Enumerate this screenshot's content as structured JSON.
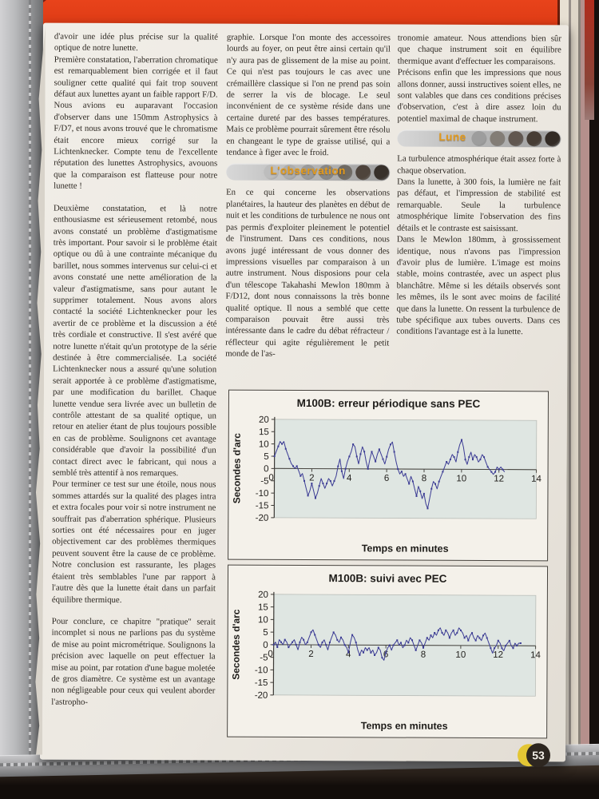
{
  "page_number": "53",
  "accent": {
    "banner_label_color": "#e39a1c",
    "cover_red": "#dd3a14",
    "chart_line_color": "#3b3b94",
    "chart_plot_bg": "#dfe6e2",
    "badge_yellow": "#e3c634",
    "badge_dark": "#2d2620"
  },
  "banners": {
    "observation": {
      "label": "L'observation",
      "circle_colors": [
        "#bdbdbd",
        "#adadad",
        "#9a9a9a",
        "#878787",
        "#6f6a63",
        "#4e443c",
        "#37302a"
      ]
    },
    "lune": {
      "label": "Lune",
      "circle_colors": [
        "#9d9d9d",
        "#837d76",
        "#615750",
        "#473d35",
        "#332b25"
      ]
    }
  },
  "columns": [
    {
      "blocks": [
        {
          "type": "p",
          "text": "d'avoir une idée plus précise sur la qualité optique de notre lunette."
        },
        {
          "type": "p",
          "text": "Première constatation, l'aberration chromatique est remarquablement bien corrigée et il faut souligner cette qualité qui fait trop souvent défaut aux lunettes ayant un faible rapport F/D. Nous avions eu auparavant l'occasion d'observer dans une 150mm Astrophysics à F/D7, et nous avons trouvé que le chromatisme était encore mieux corrigé sur la Lichtenknecker. Compte tenu de l'excellente réputation des lunettes Astrophysics, avouons que la comparaison est flatteuse pour notre lunette !"
        },
        {
          "type": "gap"
        },
        {
          "type": "p",
          "text": "Deuxième constatation, et là notre enthousiasme est sérieusement retombé, nous avons constaté un problème d'astigmatisme très important. Pour savoir si le problème était optique ou dû à une contrainte mécanique du barillet, nous sommes intervenus sur celui-ci et avons constaté une nette amélioration de la valeur d'astigmatisme, sans pour autant le supprimer totalement. Nous avons alors contacté la société Lichtenknecker pour les avertir de ce problème et la discussion a été très cordiale et constructive. Il s'est avéré que notre lunette n'était qu'un prototype de la série destinée à être commercialisée. La société Lichtenknecker nous a assuré qu'une solution serait apportée à ce problème d'astigmatisme, par une modification du barillet. Chaque lunette vendue sera livrée avec un bulletin de contrôle attestant de sa qualité optique, un retour en atelier étant de plus toujours possible en cas de problème. Soulignons cet avantage considérable que d'avoir la possibilité d'un contact direct avec le fabricant, qui nous a semblé très attentif à nos remarques."
        },
        {
          "type": "p",
          "text": "Pour terminer ce test sur une étoile, nous nous sommes attardés sur la qualité des plages intra et extra focales pour voir si notre instrument ne souffrait pas d'aberration sphérique. Plusieurs sorties ont été nécessaires pour en juger objectivement car des problèmes thermiques peuvent souvent être la cause de ce problème. Notre conclusion est rassurante, les plages étaient très semblables l'une par rapport à l'autre dès que la lunette était dans un parfait équilibre thermique."
        },
        {
          "type": "gap"
        },
        {
          "type": "p",
          "text": "Pour conclure, ce chapitre \"pratique\" serait incomplet si nous ne parlions pas du système de mise au point micrométrique. Soulignons la précision avec laquelle on peut effectuer la mise au point, par rotation d'une bague moletée de gros diamètre. Ce système est un avantage non négligeable pour ceux qui veulent aborder l'astropho-"
        }
      ]
    },
    {
      "blocks": [
        {
          "type": "p",
          "text": "graphie. Lorsque l'on monte des accessoires lourds au foyer, on peut être ainsi certain qu'il n'y aura pas de glissement de la mise au point. Ce qui n'est pas toujours le cas avec une crémaillère classique si l'on ne prend pas soin de serrer la vis de blocage. Le seul inconvénient de ce système réside dans une certaine dureté par des basses températures. Mais ce problème pourrait sûrement être résolu en changeant le type de graisse utilisé, qui a tendance à figer avec le froid."
        },
        {
          "type": "banner",
          "key": "observation"
        },
        {
          "type": "p",
          "text": "En ce qui concerne les observations planétaires, la hauteur des planètes en début de nuit et les conditions de turbulence ne nous ont pas permis d'exploiter pleinement le potentiel de l'instrument. Dans ces conditions, nous avons jugé intéressant de vous donner des impressions visuelles par comparaison à un autre instrument. Nous disposions pour cela d'un télescope Takahashi Mewlon 180mm à F/D12, dont nous connaissons la très bonne qualité optique. Il nous a semblé que cette comparaison pouvait être aussi très intéressante dans le cadre du débat réfracteur / réflecteur qui agite régulièrement le petit monde de l'as-"
        }
      ]
    },
    {
      "blocks": [
        {
          "type": "p",
          "text": "tronomie amateur. Nous attendions bien sûr que chaque instrument soit en équilibre thermique avant d'effectuer les comparaisons."
        },
        {
          "type": "p",
          "text": "Précisons enfin que les impressions que nous allons donner, aussi instructives soient elles, ne sont valables que dans ces conditions précises d'observation, c'est à dire assez loin du potentiel maximal de chaque instrument."
        },
        {
          "type": "banner",
          "key": "lune"
        },
        {
          "type": "p",
          "text": "La turbulence atmosphérique était assez forte à chaque observation."
        },
        {
          "type": "p",
          "text": "Dans la lunette, à 300 fois, la lumière ne fait pas défaut, et l'impression de stabilité est remarquable. Seule la turbulence atmosphérique limite l'observation des fins détails et le contraste est saisissant."
        },
        {
          "type": "p",
          "text": "Dans le Mewlon 180mm, à grossissement identique, nous n'avons pas l'impression d'avoir plus de lumière. L'image est moins stable, moins contrastée, avec un aspect plus blanchâtre. Même si les détails observés sont les mêmes, ils le sont avec moins de facilité que dans la lunette. On ressent la turbulence de tube spécifique aux tubes ouverts. Dans ces conditions l'avantage est à la lunette."
        }
      ]
    }
  ],
  "chart_data": [
    {
      "type": "line",
      "title": "M100B: erreur périodique sans PEC",
      "xlabel": "Temps en minutes",
      "ylabel": "Secondes d'arc",
      "xlim": [
        0,
        14
      ],
      "ylim": [
        -20,
        20
      ],
      "xticks": [
        0,
        2,
        4,
        6,
        8,
        10,
        12,
        14
      ],
      "yticks": [
        20,
        15,
        10,
        5,
        0,
        -5,
        -10,
        -15,
        -20
      ],
      "grid": false,
      "legend": "none",
      "x_start": 0,
      "x_step": 0.1,
      "values": [
        5,
        7,
        9,
        11,
        10,
        11,
        8,
        6,
        4,
        2,
        1,
        0,
        1,
        -1,
        -3,
        -2,
        -5,
        -8,
        -11,
        -9,
        -6,
        -9,
        -12,
        -10,
        -7,
        -4,
        -6,
        -8,
        -6,
        -4,
        -5,
        -7,
        -5,
        -3,
        1,
        4,
        -1,
        -4,
        0,
        3,
        5,
        7,
        10,
        9,
        5,
        2,
        6,
        9,
        7,
        3,
        0,
        4,
        7,
        5,
        3,
        6,
        8,
        6,
        4,
        2,
        5,
        8,
        10,
        11,
        7,
        3,
        0,
        -2,
        -1,
        -3,
        -2,
        -4,
        -6,
        -3,
        -5,
        -8,
        -11,
        -7,
        -9,
        -12,
        -10,
        -14,
        -16,
        -12,
        -8,
        -5,
        -6,
        -8,
        -5,
        -3,
        -1,
        1,
        3,
        2,
        4,
        6,
        5,
        3,
        7,
        10,
        12,
        9,
        4,
        2,
        5,
        7,
        4,
        6,
        5,
        3,
        4,
        6,
        5,
        3,
        1,
        0,
        -1,
        -2,
        -1,
        1,
        0,
        1,
        0,
        -1
      ]
    },
    {
      "type": "line",
      "title": "M100B: suivi avec PEC",
      "xlabel": "Temps en minutes",
      "ylabel": "Secondes d'arc",
      "xlim": [
        0,
        14
      ],
      "ylim": [
        -20,
        20
      ],
      "xticks": [
        0,
        2,
        4,
        6,
        8,
        10,
        12,
        14
      ],
      "yticks": [
        20,
        15,
        10,
        5,
        0,
        -5,
        -10,
        -15,
        -20
      ],
      "grid": false,
      "legend": "none",
      "x_start": 0,
      "x_step": 0.1,
      "values": [
        0,
        1,
        -1,
        2,
        1,
        0,
        2,
        1,
        -1,
        0,
        1,
        2,
        0,
        -2,
        1,
        3,
        2,
        0,
        1,
        3,
        5,
        6,
        4,
        2,
        0,
        -1,
        1,
        2,
        0,
        -2,
        1,
        3,
        5,
        4,
        2,
        1,
        3,
        2,
        0,
        -1,
        -3,
        1,
        4,
        3,
        1,
        -2,
        -4,
        -2,
        -3,
        -1,
        -2,
        -1,
        -3,
        -2,
        -4,
        -3,
        -1,
        -2,
        -5,
        -6,
        -3,
        -1,
        0,
        -2,
        0,
        1,
        2,
        0,
        1,
        -1,
        0,
        2,
        1,
        3,
        2,
        0,
        -2,
        0,
        2,
        1,
        -1,
        1,
        3,
        2,
        4,
        3,
        5,
        4,
        6,
        7,
        5,
        4,
        6,
        5,
        3,
        5,
        6,
        4,
        5,
        7,
        6,
        5,
        3,
        4,
        2,
        4,
        5,
        3,
        2,
        4,
        3,
        2,
        4,
        5,
        3,
        1,
        -1,
        -3,
        -1,
        0,
        2,
        1,
        -1,
        -2,
        0,
        1,
        2,
        0,
        -1,
        1,
        0,
        1,
        1
      ]
    }
  ]
}
